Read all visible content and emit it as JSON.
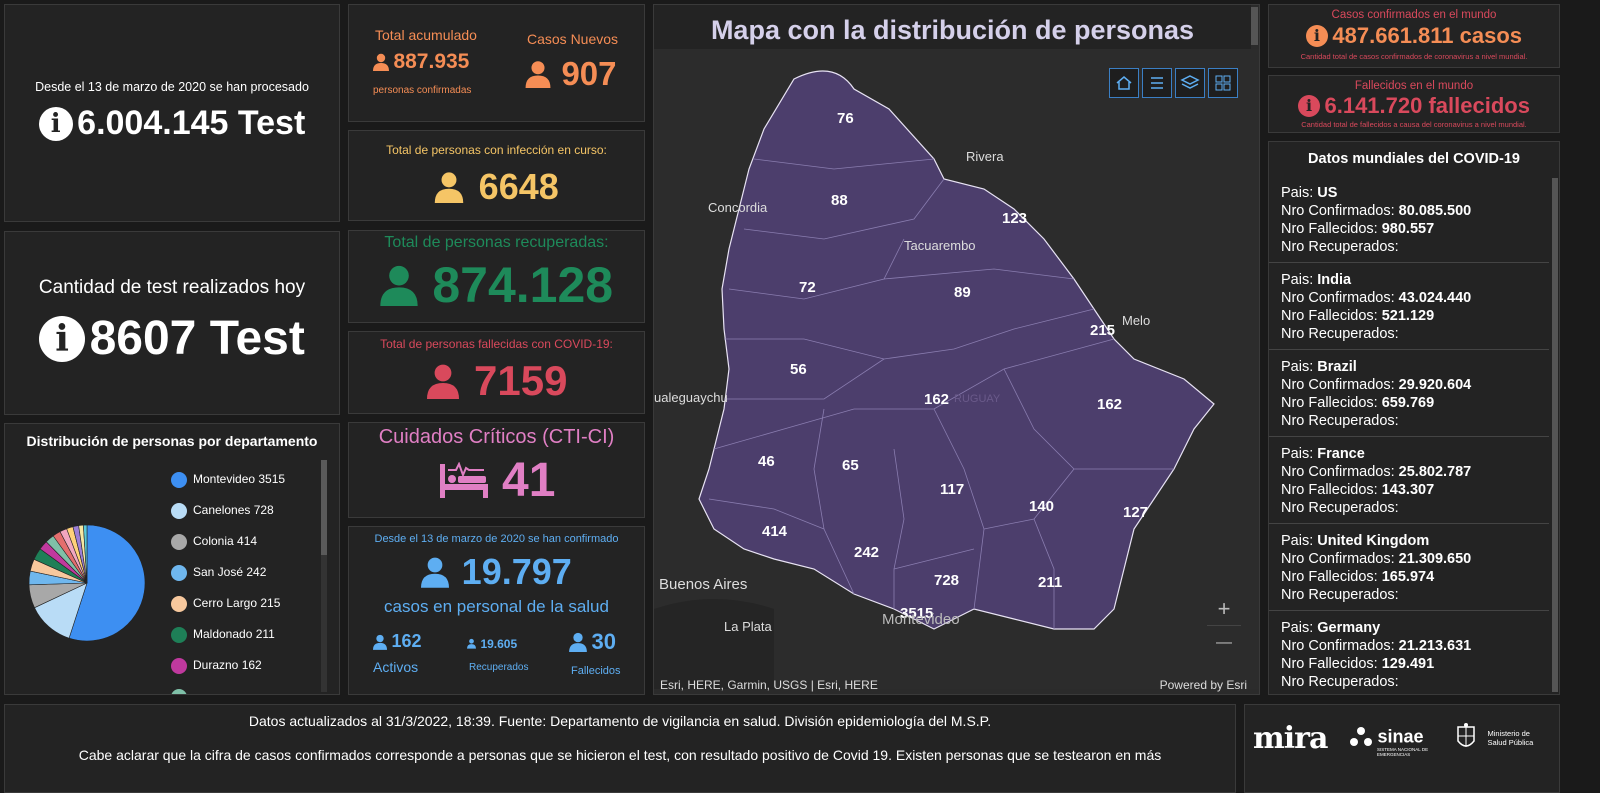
{
  "tests_total": {
    "caption": "Desde el 13 de marzo de 2020 se han procesado",
    "value": "6.004.145 Test"
  },
  "tests_today": {
    "caption": "Cantidad de test realizados hoy",
    "value": "8607 Test"
  },
  "department_distribution": {
    "title": "Distribución de personas por departamento",
    "items": [
      {
        "label": "Montevideo  3515",
        "color": "#3d8ff2"
      },
      {
        "label": "Canelones  728",
        "color": "#b9dcf6"
      },
      {
        "label": "Colonia  414",
        "color": "#a8a8a8"
      },
      {
        "label": "San José  242",
        "color": "#6fb7ee"
      },
      {
        "label": "Cerro Largo  215",
        "color": "#f7c89d"
      },
      {
        "label": "Maldonado  211",
        "color": "#1e7f57"
      },
      {
        "label": "Durazno  162",
        "color": "#c0399e"
      }
    ]
  },
  "total_acumulado": {
    "title": "Total acumulado",
    "value": "887.935",
    "subtitle": "personas confirmadas"
  },
  "casos_nuevos": {
    "title": "Casos Nuevos",
    "value": "907"
  },
  "infeccion_curso": {
    "title": "Total de personas con infección en curso:",
    "value": "6648"
  },
  "recuperadas": {
    "title": "Total de personas recuperadas:",
    "value": "874.128"
  },
  "fallecidas": {
    "title": "Total de personas fallecidas con COVID-19:",
    "value": "7159"
  },
  "cuidados_criticos": {
    "title": "Cuidados Críticos (CTI-CI)",
    "value": "41"
  },
  "personal_salud": {
    "caption": "Desde el 13 de marzo de 2020 se han confirmado",
    "value": "19.797",
    "subtitle": "casos en personal de la salud",
    "activos_value": "162",
    "activos_label": "Activos",
    "recuperados_value": "19.605",
    "recuperados_label": "Recuperados",
    "fallecidos_value": "30",
    "fallecidos_label": "Fallecidos"
  },
  "map": {
    "title": "Mapa con la distribución de personas",
    "attribution": "Esri, HERE, Garmin, USGS | Esri, HERE",
    "powered": "Powered by Esri",
    "zoom_in": "+",
    "zoom_out": "—",
    "counts": [
      "76",
      "88",
      "123",
      "72",
      "89",
      "215",
      "56",
      "162",
      "162",
      "46",
      "65",
      "117",
      "140",
      "127",
      "414",
      "242",
      "728",
      "211",
      "3515"
    ],
    "cities": [
      "Rivera",
      "Concordia",
      "Tacuarembo",
      "Melo",
      "ualeguaychu",
      "Buenos Aires",
      "La Plata",
      "Montevideo",
      "RUGUAY"
    ]
  },
  "world_confirmed": {
    "title": "Casos confirmados en el mundo",
    "value": "487.661.811 casos",
    "subtitle": "Cantidad total de casos confirmados de coronavirus a nivel mundial."
  },
  "world_deaths": {
    "title": "Fallecidos en el mundo",
    "value": "6.141.720 fallecidos",
    "subtitle": "Cantidad total de fallecidos a causa del coronavirus a nivel mundial."
  },
  "world_data": {
    "title": "Datos mundiales del COVID-19",
    "label_pais": "Pais: ",
    "label_conf": "Nro Confirmados: ",
    "label_fall": "Nro Fallecidos: ",
    "label_rec": "Nro Recuperados:",
    "countries": [
      {
        "name": "US",
        "confirmed": "80.085.500",
        "deaths": "980.557"
      },
      {
        "name": "India",
        "confirmed": "43.024.440",
        "deaths": "521.129"
      },
      {
        "name": "Brazil",
        "confirmed": "29.920.604",
        "deaths": "659.769"
      },
      {
        "name": "France",
        "confirmed": "25.802.787",
        "deaths": "143.307"
      },
      {
        "name": "United Kingdom",
        "confirmed": "21.309.650",
        "deaths": "165.974"
      },
      {
        "name": "Germany",
        "confirmed": "21.213.631",
        "deaths": "129.491"
      }
    ]
  },
  "footer": {
    "line1": "Datos actualizados al 31/3/2022, 18:39. Fuente: Departamento de vigilancia en salud. División epidemiología del M.S.P.",
    "line2": "Cabe aclarar que la cifra de casos confirmados corresponde a personas que se hicieron el test, con resultado positivo de Covid 19. Existen personas que se testearon en más",
    "logo_mira": "mira",
    "logo_sinae": "sinae",
    "logo_sinae_sub": "SISTEMA NACIONAL DE EMERGENCIAS",
    "logo_msp": "Ministerio de Salud Pública"
  }
}
